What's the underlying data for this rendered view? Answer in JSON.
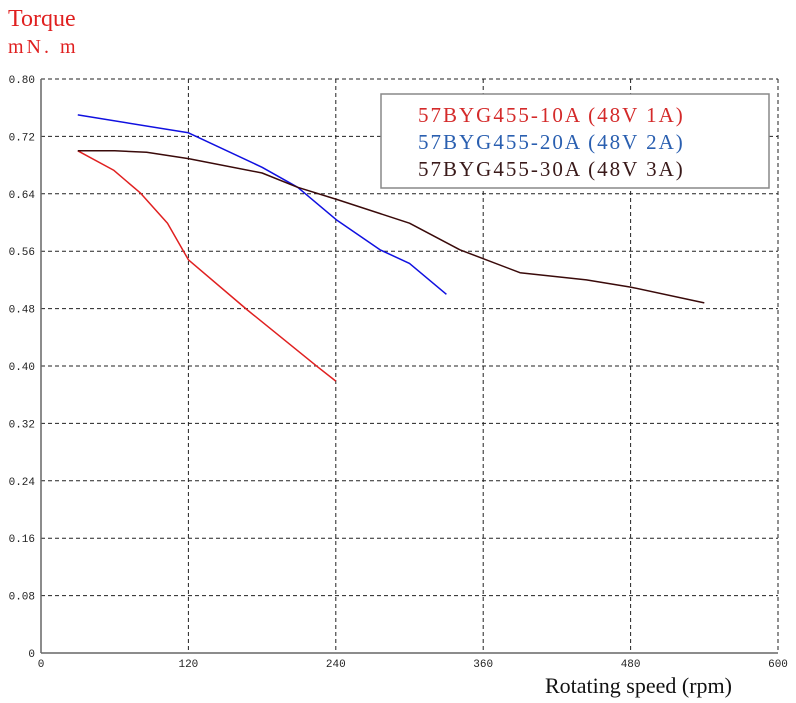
{
  "chart_data": {
    "type": "line",
    "title": "",
    "ylabel": "Torque",
    "yunit": "mN. m",
    "xlabel": "Rotating speed (rpm)",
    "xlim": [
      0,
      600
    ],
    "ylim": [
      0,
      0.8
    ],
    "xticks": [
      "0",
      "120",
      "240",
      "360",
      "480",
      "600"
    ],
    "xtick_values": [
      0,
      120,
      240,
      360,
      480,
      600
    ],
    "yticks": [
      "0",
      "0.08",
      "0.16",
      "0.24",
      "0.32",
      "0.40",
      "0.48",
      "0.56",
      "0.64",
      "0.72",
      "0.80"
    ],
    "ytick_values": [
      0,
      0.08,
      0.16,
      0.24,
      0.32,
      0.4,
      0.48,
      0.56,
      0.64,
      0.72,
      0.8
    ],
    "grid": true,
    "legend_placement": "top-right",
    "series": [
      {
        "name": "57BYG455-10A (48V 1A)",
        "color": "#e02020",
        "x": [
          30,
          59,
          81,
          103,
          120,
          168,
          225,
          240
        ],
        "y": [
          0.7,
          0.673,
          0.641,
          0.599,
          0.548,
          0.478,
          0.399,
          0.379
        ]
      },
      {
        "name": "57BYG455-20A (48V 2A)",
        "color": "#1010e0",
        "x": [
          30,
          120,
          180,
          209,
          241,
          276,
          300,
          330
        ],
        "y": [
          0.75,
          0.725,
          0.677,
          0.649,
          0.603,
          0.562,
          0.543,
          0.5
        ]
      },
      {
        "name": "57BYG455-30A (48V 3A)",
        "color": "#3a0a0a",
        "x": [
          30,
          60,
          86,
          120,
          180,
          209,
          241,
          300,
          341,
          390,
          444,
          480,
          540
        ],
        "y": [
          0.7,
          0.7,
          0.698,
          0.689,
          0.669,
          0.649,
          0.632,
          0.599,
          0.562,
          0.53,
          0.52,
          0.51,
          0.488
        ]
      }
    ],
    "legend_colors": [
      "#d42a2a",
      "#2a5fb0",
      "#3a1a1a"
    ]
  }
}
